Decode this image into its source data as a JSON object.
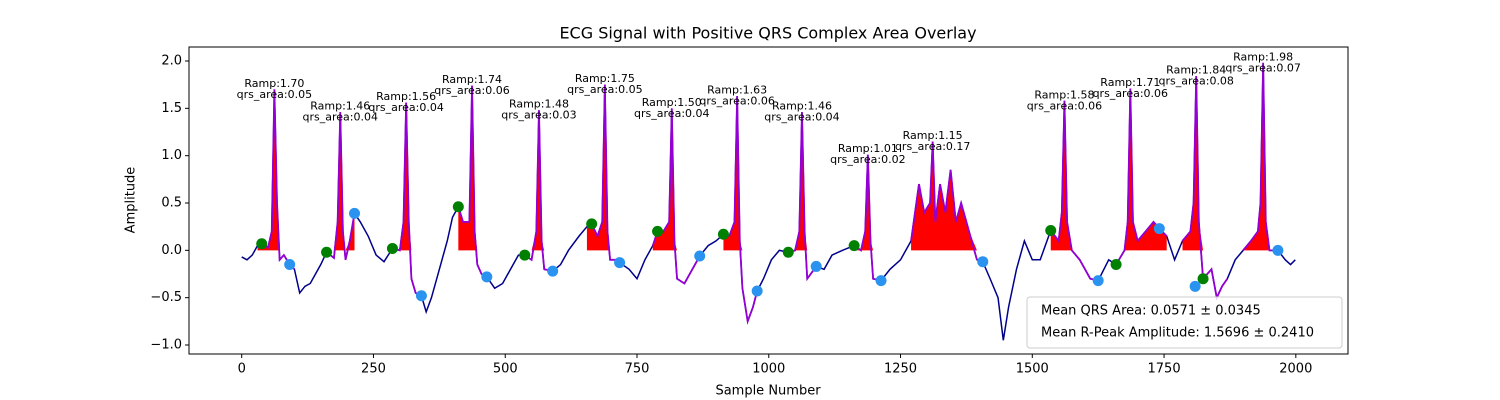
{
  "chart_data": {
    "type": "line",
    "title": "ECG Signal with Positive QRS Complex Area Overlay",
    "xlabel": "Sample Number",
    "ylabel": "Amplitude",
    "xlim": [
      -100,
      2099
    ],
    "xticks": [
      0,
      250,
      500,
      750,
      1000,
      1250,
      1500,
      1750,
      2000
    ],
    "ylim": [
      -1.095,
      2.148
    ],
    "yticks": [
      {
        "value": -1.0,
        "label": "−1.0"
      },
      {
        "value": -0.5,
        "label": "−0.5"
      },
      {
        "value": 0,
        "label": "0.0"
      },
      {
        "value": 0.5,
        "label": "0.5"
      },
      {
        "value": 1.0,
        "label": "1.0"
      },
      {
        "value": 1.5,
        "label": "1.5"
      },
      {
        "value": 2.0,
        "label": "2.0"
      }
    ],
    "x": [
      0,
      10,
      20,
      30,
      38,
      50,
      57,
      62,
      67,
      72,
      80,
      91,
      100,
      110,
      120,
      130,
      140,
      150,
      161,
      175,
      182,
      187,
      192,
      197,
      205,
      214,
      225,
      240,
      255,
      270,
      286,
      300,
      307,
      312,
      317,
      322,
      330,
      341,
      350,
      360,
      375,
      390,
      400,
      411,
      420,
      432,
      437,
      442,
      447,
      455,
      465,
      480,
      495,
      510,
      525,
      537,
      550,
      559,
      564,
      569,
      574,
      590,
      605,
      620,
      640,
      655,
      664,
      675,
      684,
      689,
      694,
      699,
      710,
      717,
      735,
      750,
      765,
      780,
      789,
      800,
      811,
      816,
      821,
      826,
      840,
      855,
      869,
      885,
      900,
      914,
      925,
      935,
      940,
      945,
      950,
      960,
      970,
      978,
      990,
      1005,
      1020,
      1037,
      1050,
      1058,
      1063,
      1068,
      1073,
      1090,
      1105,
      1120,
      1140,
      1162,
      1175,
      1183,
      1188,
      1193,
      1198,
      1213,
      1230,
      1250,
      1270,
      1285,
      1295,
      1306,
      1311,
      1316,
      1325,
      1335,
      1345,
      1355,
      1365,
      1380,
      1395,
      1406,
      1420,
      1435,
      1445,
      1455,
      1470,
      1485,
      1500,
      1515,
      1535,
      1550,
      1556,
      1561,
      1566,
      1575,
      1590,
      1610,
      1625,
      1645,
      1659,
      1675,
      1681,
      1686,
      1691,
      1700,
      1715,
      1730,
      1741,
      1755,
      1770,
      1785,
      1800,
      1806,
      1811,
      1816,
      1824,
      1840,
      1850,
      1860,
      1870,
      1885,
      1900,
      1915,
      1928,
      1933,
      1938,
      1943,
      1950,
      1966,
      1980,
      1990,
      1999
    ],
    "series": [
      {
        "color": "#00008b",
        "highlight_color": "#9400d3",
        "fill_color": "#ff0000",
        "values": [
          -0.07,
          -0.1,
          -0.05,
          0.05,
          0.07,
          0.03,
          0.2,
          1.7,
          0.5,
          -0.1,
          -0.05,
          -0.15,
          -0.2,
          -0.45,
          -0.38,
          -0.35,
          -0.25,
          -0.15,
          -0.02,
          -0.08,
          0.3,
          1.46,
          0.2,
          -0.1,
          0.1,
          0.39,
          0.3,
          0.15,
          -0.05,
          -0.12,
          0.02,
          0.0,
          0.3,
          1.56,
          0.3,
          -0.3,
          -0.45,
          -0.48,
          -0.65,
          -0.5,
          -0.2,
          0.1,
          0.35,
          0.46,
          0.3,
          0.3,
          1.74,
          0.2,
          -0.15,
          -0.25,
          -0.28,
          -0.4,
          -0.35,
          -0.2,
          -0.05,
          -0.05,
          -0.1,
          0.2,
          1.48,
          0.1,
          -0.2,
          -0.22,
          -0.15,
          0.0,
          0.15,
          0.25,
          0.28,
          0.15,
          0.3,
          1.75,
          0.2,
          -0.1,
          -0.1,
          -0.13,
          -0.2,
          -0.3,
          -0.1,
          0.05,
          0.2,
          0.2,
          0.3,
          1.5,
          0.1,
          -0.3,
          -0.35,
          -0.2,
          -0.06,
          0.05,
          0.1,
          0.17,
          0.15,
          0.3,
          1.63,
          0.1,
          -0.4,
          -0.75,
          -0.6,
          -0.43,
          -0.3,
          -0.1,
          0.0,
          -0.02,
          0.0,
          0.2,
          1.46,
          0.2,
          -0.3,
          -0.17,
          -0.2,
          -0.05,
          0.0,
          0.05,
          0.0,
          0.2,
          1.01,
          0.1,
          -0.3,
          -0.32,
          -0.2,
          -0.1,
          0.1,
          0.7,
          0.4,
          0.5,
          1.15,
          0.3,
          0.7,
          0.4,
          0.85,
          0.3,
          0.5,
          0.2,
          -0.1,
          -0.12,
          -0.3,
          -0.5,
          -0.95,
          -0.6,
          -0.2,
          0.1,
          -0.1,
          -0.1,
          0.21,
          0.1,
          0.4,
          1.58,
          0.3,
          0.0,
          -0.1,
          -0.3,
          -0.32,
          -0.1,
          -0.15,
          0.0,
          0.3,
          1.71,
          0.3,
          0.1,
          0.2,
          0.3,
          0.23,
          0.15,
          -0.1,
          0.1,
          0.2,
          0.5,
          1.84,
          0.3,
          -0.3,
          -0.2,
          -0.5,
          -0.38,
          -0.3,
          -0.1,
          0.0,
          0.1,
          0.2,
          0.5,
          1.98,
          0.3,
          0.0,
          0.0,
          -0.1,
          -0.15,
          -0.1
        ],
        "qrs_windows": [
          [
            30,
            100
          ],
          [
            155,
            215
          ],
          [
            280,
            345
          ],
          [
            405,
            470
          ],
          [
            530,
            595
          ],
          [
            655,
            720
          ],
          [
            780,
            870
          ],
          [
            905,
            980
          ],
          [
            1030,
            1095
          ],
          [
            1155,
            1215
          ],
          [
            1270,
            1400
          ],
          [
            1525,
            1630
          ],
          [
            1650,
            1760
          ],
          [
            1780,
            1870
          ],
          [
            1900,
            1970
          ]
        ]
      }
    ],
    "markers": [
      {
        "color": "#008000",
        "x": [
          38,
          161,
          286,
          411,
          537,
          664,
          789,
          914,
          1037,
          1162,
          1535,
          1659,
          1824
        ],
        "values": [
          0.07,
          -0.02,
          0.02,
          0.46,
          -0.05,
          0.28,
          0.2,
          0.17,
          -0.02,
          0.05,
          0.21,
          -0.15,
          -0.3
        ]
      },
      {
        "color": "#2a93ef",
        "x": [
          91,
          214,
          341,
          465,
          590,
          717,
          869,
          978,
          1090,
          1213,
          1406,
          1625,
          1741,
          1809,
          1966
        ],
        "values": [
          -0.15,
          0.39,
          -0.48,
          -0.28,
          -0.22,
          -0.13,
          -0.06,
          -0.43,
          -0.17,
          -0.32,
          -0.12,
          -0.32,
          0.23,
          -0.38,
          0.0
        ]
      }
    ],
    "annotations": [
      {
        "x": 62,
        "y": 1.7,
        "lines": [
          "Ramp:1.70",
          "qrs_area:0.05"
        ]
      },
      {
        "x": 187,
        "y": 1.46,
        "lines": [
          "Ramp:1.46",
          "qrs_area:0.04"
        ]
      },
      {
        "x": 312,
        "y": 1.56,
        "lines": [
          "Ramp:1.56",
          "qrs_area:0.04"
        ]
      },
      {
        "x": 437,
        "y": 1.74,
        "lines": [
          "Ramp:1.74",
          "qrs_area:0.06"
        ]
      },
      {
        "x": 564,
        "y": 1.48,
        "lines": [
          "Ramp:1.48",
          "qrs_area:0.03"
        ]
      },
      {
        "x": 689,
        "y": 1.75,
        "lines": [
          "Ramp:1.75",
          "qrs_area:0.05"
        ]
      },
      {
        "x": 816,
        "y": 1.5,
        "lines": [
          "Ramp:1.50",
          "qrs_area:0.04"
        ]
      },
      {
        "x": 940,
        "y": 1.63,
        "lines": [
          "Ramp:1.63",
          "qrs_area:0.06"
        ]
      },
      {
        "x": 1063,
        "y": 1.46,
        "lines": [
          "Ramp:1.46",
          "qrs_area:0.04"
        ]
      },
      {
        "x": 1188,
        "y": 1.01,
        "lines": [
          "Ramp:1.01",
          "qrs_area:0.02"
        ]
      },
      {
        "x": 1311,
        "y": 1.15,
        "lines": [
          "Ramp:1.15",
          "qrs_area:0.17"
        ]
      },
      {
        "x": 1561,
        "y": 1.58,
        "lines": [
          "Ramp:1.58",
          "qrs_area:0.06"
        ]
      },
      {
        "x": 1686,
        "y": 1.71,
        "lines": [
          "Ramp:1.71",
          "qrs_area:0.06"
        ]
      },
      {
        "x": 1811,
        "y": 1.84,
        "lines": [
          "Ramp:1.84",
          "qrs_area:0.08"
        ]
      },
      {
        "x": 1938,
        "y": 1.98,
        "lines": [
          "Ramp:1.98",
          "qrs_area:0.07"
        ]
      }
    ],
    "legend": {
      "loc": "lower right",
      "entries": [
        "Mean QRS Area: 0.0571 ± 0.0345",
        "Mean R-Peak Amplitude: 1.5696 ± 0.2410"
      ]
    }
  }
}
